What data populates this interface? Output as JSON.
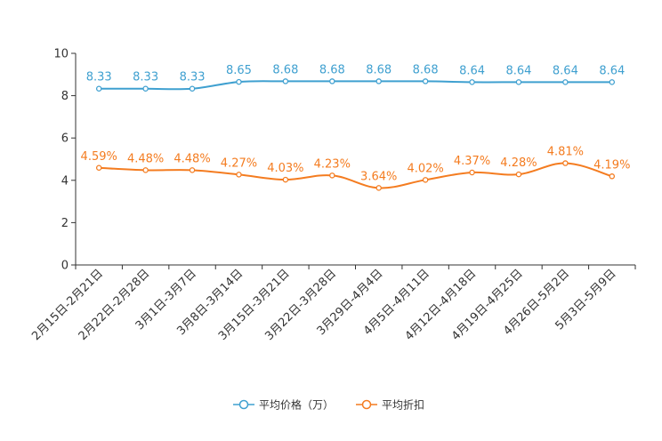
{
  "chart_data": {
    "type": "line",
    "title": "",
    "xlabel": "",
    "ylabel": "",
    "ylim": [
      0,
      10
    ],
    "yticks": [
      0,
      2,
      4,
      6,
      8,
      10
    ],
    "grid": false,
    "legend_position": "bottom",
    "categories": [
      "2月15日-2月21日",
      "2月22日-2月28日",
      "3月1日-3月7日",
      "3月8日-3月14日",
      "3月15日-3月21日",
      "3月22日-3月28日",
      "3月29日-4月4日",
      "4月5日-4月11日",
      "4月12日-4月18日",
      "4月19日-4月25日",
      "4月26日-5月2日",
      "5月3日-5月9日"
    ],
    "series": [
      {
        "name": "平均价格（万）",
        "color": "#3fa0d0",
        "values": [
          8.33,
          8.33,
          8.33,
          8.65,
          8.68,
          8.68,
          8.68,
          8.68,
          8.64,
          8.64,
          8.64,
          8.64
        ],
        "labels": [
          "8.33",
          "8.33",
          "8.33",
          "8.65",
          "8.68",
          "8.68",
          "8.68",
          "8.68",
          "8.64",
          "8.64",
          "8.64",
          "8.64"
        ]
      },
      {
        "name": "平均折扣",
        "color": "#f47c20",
        "values": [
          4.59,
          4.48,
          4.48,
          4.27,
          4.03,
          4.23,
          3.64,
          4.02,
          4.37,
          4.28,
          4.81,
          4.19
        ],
        "labels": [
          "4.59%",
          "4.48%",
          "4.48%",
          "4.27%",
          "4.03%",
          "4.23%",
          "3.64%",
          "4.02%",
          "4.37%",
          "4.28%",
          "4.81%",
          "4.19%"
        ]
      }
    ]
  }
}
